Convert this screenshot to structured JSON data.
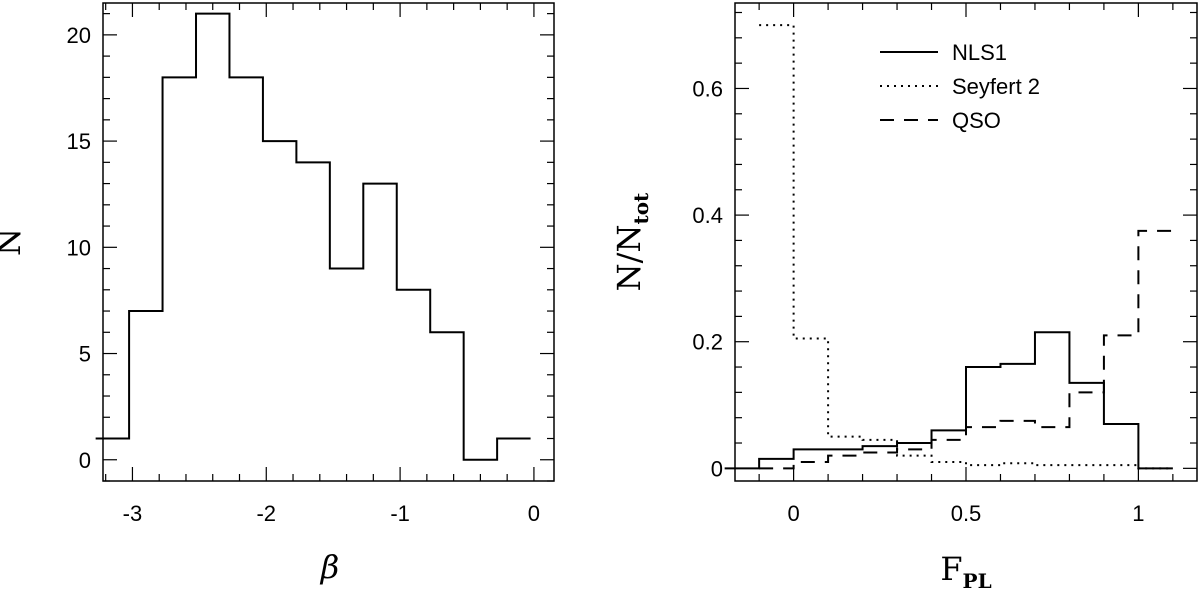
{
  "chart_data": [
    {
      "type": "histogram",
      "x_values": [
        -3.15,
        -2.9,
        -2.65,
        -2.4,
        -2.15,
        -1.9,
        -1.65,
        -1.4,
        -1.15,
        -0.9,
        -0.65,
        -0.4,
        -0.15
      ],
      "series": [
        {
          "values": [
            1,
            7,
            18,
            21,
            18,
            15,
            14,
            9,
            13,
            8,
            6,
            0,
            1
          ],
          "style": "solid"
        }
      ],
      "xlabel": "β",
      "ylabel": "N",
      "xlim": [
        -3.22,
        0.15
      ],
      "ylim": [
        -1.0,
        21.5
      ],
      "xticks": {
        "major": [
          -3,
          -2,
          -1,
          0
        ],
        "labels": [
          "-3",
          "-2",
          "-1",
          "0"
        ]
      },
      "yticks": {
        "major": [
          0,
          5,
          10,
          15,
          20
        ],
        "labels": [
          "0",
          "5",
          "10",
          "15",
          "20"
        ]
      }
    },
    {
      "type": "histogram",
      "series": [
        {
          "name": "NLS1",
          "style": "solid",
          "x": [
            -0.15,
            -0.05,
            0.05,
            0.15,
            0.25,
            0.35,
            0.45,
            0.55,
            0.65,
            0.75,
            0.85,
            0.95,
            1.05
          ],
          "values": [
            0.0,
            0.015,
            0.03,
            0.03,
            0.035,
            0.04,
            0.06,
            0.16,
            0.165,
            0.215,
            0.135,
            0.07,
            0.0
          ]
        },
        {
          "name": "Seyfert 2",
          "style": "dotted",
          "x": [
            -0.05,
            0.05,
            0.15,
            0.25,
            0.35,
            0.45,
            0.55,
            0.65,
            0.75,
            0.85,
            0.95,
            1.05
          ],
          "values": [
            0.7,
            0.205,
            0.05,
            0.045,
            0.02,
            0.01,
            0.005,
            0.008,
            0.005,
            0.005,
            0.005,
            0.0
          ]
        },
        {
          "name": "QSO",
          "style": "dashed",
          "x": [
            -0.05,
            0.05,
            0.15,
            0.25,
            0.35,
            0.45,
            0.55,
            0.65,
            0.75,
            0.85,
            0.95,
            1.05
          ],
          "values": [
            0.0,
            0.01,
            0.02,
            0.025,
            0.03,
            0.045,
            0.065,
            0.075,
            0.065,
            0.12,
            0.21,
            0.375
          ]
        }
      ],
      "xlabel": "F",
      "xlabel_sub": "PL",
      "ylabel": "N/N",
      "ylabel_sub": "tot",
      "xlim": [
        -0.17,
        1.17
      ],
      "ylim": [
        -0.02,
        0.735
      ],
      "xticks": {
        "major": [
          0,
          0.5,
          1
        ],
        "labels": [
          "0",
          "0.5",
          "1"
        ]
      },
      "yticks": {
        "major": [
          0,
          0.2,
          0.4,
          0.6
        ],
        "labels": [
          "0",
          "0.2",
          "0.4",
          "0.6"
        ]
      },
      "legend": {
        "position": "top-right",
        "entries": [
          "NLS1",
          "Seyfert 2",
          "QSO"
        ]
      }
    }
  ]
}
